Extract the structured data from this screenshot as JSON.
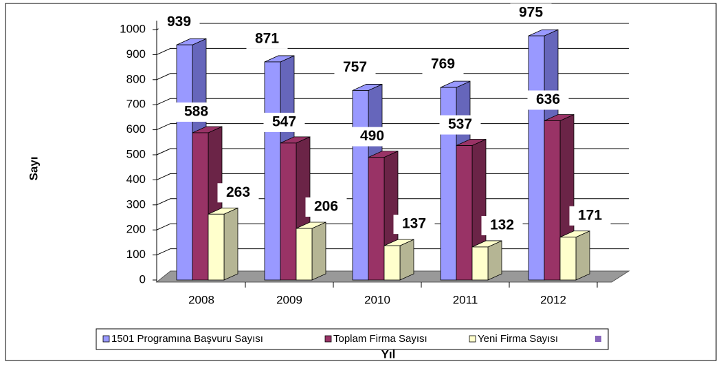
{
  "chart_data": {
    "type": "bar3d",
    "y_label": "Sayı",
    "x_label": "Yıl",
    "categories": [
      "2008",
      "2009",
      "2010",
      "2011",
      "2012"
    ],
    "series": [
      {
        "name": "1501 Programına Başvuru Sayısı",
        "color": "#9999ff",
        "side": "#6666bb",
        "values": [
          939,
          871,
          757,
          769,
          975
        ]
      },
      {
        "name": "Toplam Firma Sayısı",
        "color": "#993366",
        "side": "#6b2447",
        "values": [
          588,
          547,
          490,
          537,
          636
        ]
      },
      {
        "name": "Yeni Firma Sayısı",
        "color": "#ffffcc",
        "side": "#b5b594",
        "values": [
          263,
          206,
          137,
          132,
          171
        ]
      }
    ],
    "ylim": [
      0,
      1000
    ],
    "yticks": [
      0,
      100,
      200,
      300,
      400,
      500,
      600,
      700,
      800,
      900,
      1000
    ],
    "grid": true
  }
}
